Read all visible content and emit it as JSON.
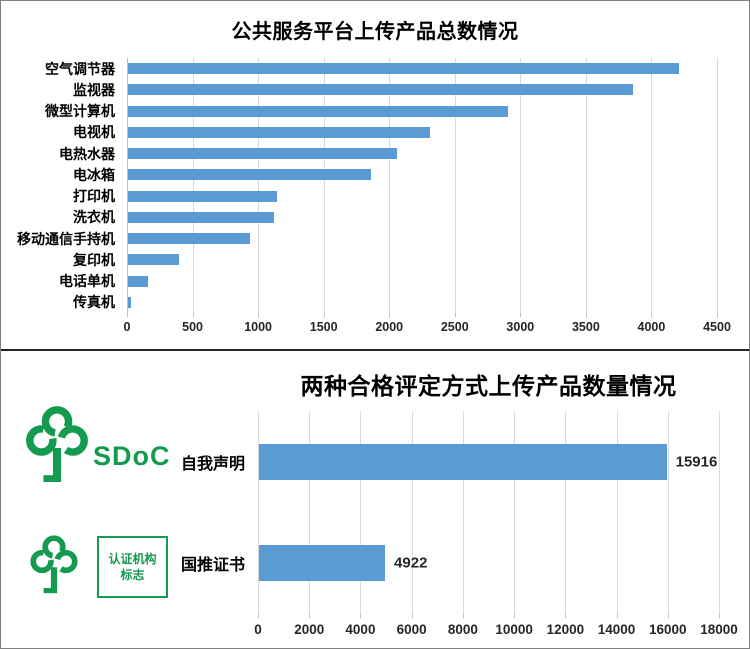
{
  "colors": {
    "bar_blue": "#5B9BD5",
    "logo_green": "#149B50"
  },
  "chart_data": [
    {
      "type": "bar",
      "orientation": "horizontal",
      "title": "公共服务平台上传产品总数情况",
      "categories": [
        "空气调节器",
        "监视器",
        "微型计算机",
        "电视机",
        "电热水器",
        "电冰箱",
        "打印机",
        "洗衣机",
        "移动通信手持机",
        "复印机",
        "电话单机",
        "传真机"
      ],
      "values": [
        4200,
        3850,
        2900,
        2300,
        2050,
        1850,
        1140,
        1110,
        930,
        390,
        150,
        25
      ],
      "xlim": [
        0,
        4500
      ],
      "xticks": [
        0,
        500,
        1000,
        1500,
        2000,
        2500,
        3000,
        3500,
        4000,
        4500
      ],
      "xtick_labels": [
        "0",
        "500",
        "1000",
        "1500",
        "2000",
        "2500",
        "3000",
        "3500",
        "4000",
        "4500"
      ],
      "grid": true,
      "legend": false,
      "bar_color": "#5B9BD5"
    },
    {
      "type": "bar",
      "orientation": "horizontal",
      "title": "两种合格评定方式上传产品数量情况",
      "categories": [
        "自我声明",
        "国推证书"
      ],
      "values": [
        15916,
        4922
      ],
      "data_labels": [
        "15916",
        "4922"
      ],
      "xlim": [
        0,
        18000
      ],
      "xticks": [
        0,
        2000,
        4000,
        6000,
        8000,
        10000,
        12000,
        14000,
        16000,
        18000
      ],
      "xtick_labels": [
        "0",
        "2000",
        "4000",
        "6000",
        "8000",
        "10000",
        "12000",
        "14000",
        "16000",
        "18000"
      ],
      "grid": true,
      "legend": false,
      "bar_color": "#5B9BD5"
    }
  ],
  "logos": {
    "sdoc_label": "SDoC",
    "cert_line1": "认证机构",
    "cert_line2": "标志"
  }
}
